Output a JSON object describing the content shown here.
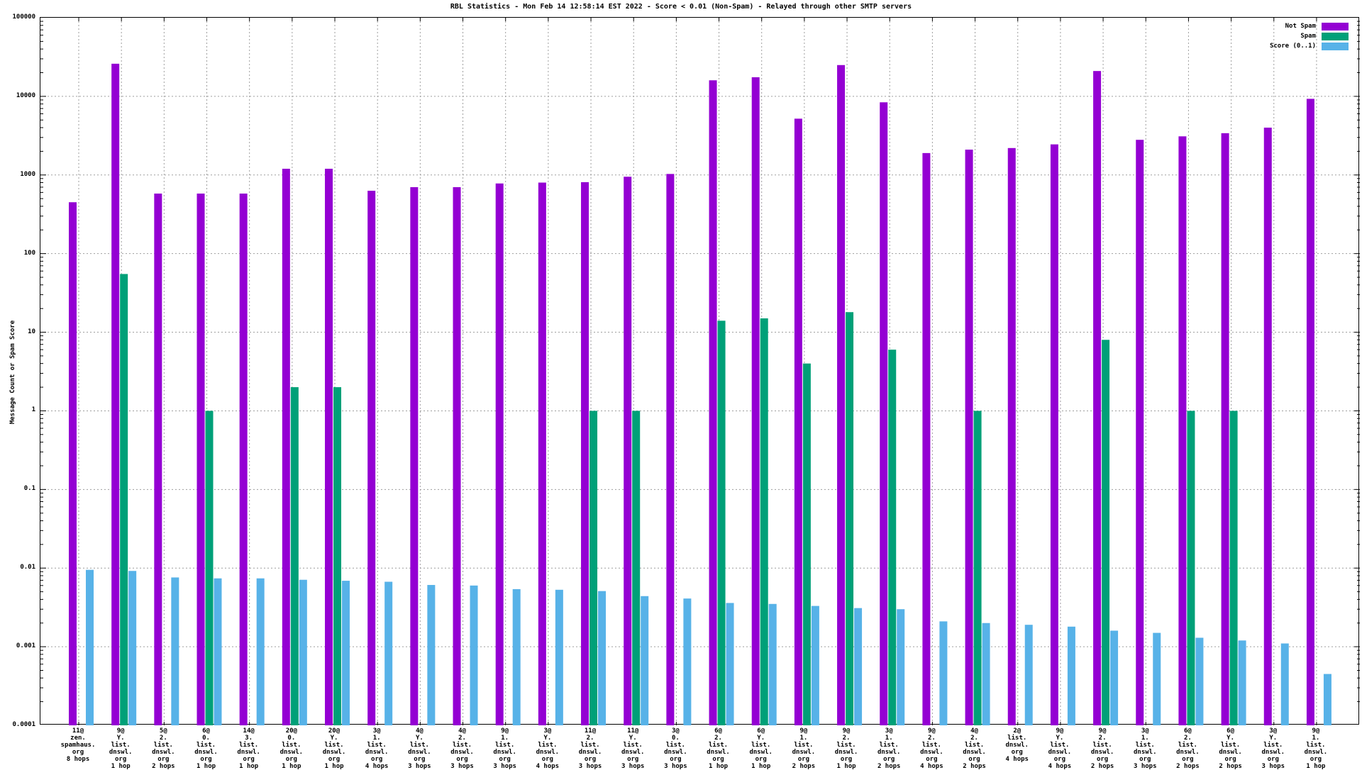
{
  "title": "RBL Statistics - Mon Feb 14 12:58:14 EST 2022 - Score < 0.01 (Non-Spam) - Relayed through other SMTP servers",
  "y_axis": {
    "label": "Message Count or Spam Score",
    "tick_labels": [
      "100000",
      "10000",
      "1000",
      "100",
      "10",
      "1",
      "0.1",
      "0.01",
      "0.001",
      "0.0001"
    ]
  },
  "colors": {
    "not_spam": "#9400d3",
    "spam": "#00a078",
    "score": "#57b2e8",
    "grid": "#9e9e9e",
    "border": "#000000"
  },
  "chart_data": {
    "type": "bar",
    "scale": "log",
    "ylim": [
      0.0001,
      100000
    ],
    "grid": true,
    "legend_position": "top-right",
    "title": "RBL Statistics - Mon Feb 14 12:58:14 EST 2022 - Score < 0.01 (Non-Spam) - Relayed through other SMTP servers",
    "xlabel": "",
    "ylabel": "Message Count or Spam Score",
    "categories": [
      {
        "name": "11@ zen.spamhaus.org 8 hops",
        "lines": [
          "11@",
          "zen.",
          "spamhaus.",
          "org",
          "8 hops"
        ]
      },
      {
        "name": "9@ Y.list.dnswl.org 1 hop",
        "lines": [
          "9@",
          "Y.",
          "list.",
          "dnswl.",
          "org",
          "1 hop"
        ]
      },
      {
        "name": "5@ 2.list.dnswl.org 2 hops",
        "lines": [
          "5@",
          "2.",
          "list.",
          "dnswl.",
          "org",
          "2 hops"
        ]
      },
      {
        "name": "6@ 0.list.dnswl.org 1 hop",
        "lines": [
          "6@",
          "0.",
          "list.",
          "dnswl.",
          "org",
          "1 hop"
        ]
      },
      {
        "name": "14@ 3.list.dnswl.org 1 hop",
        "lines": [
          "14@",
          "3.",
          "list.",
          "dnswl.",
          "org",
          "1 hop"
        ]
      },
      {
        "name": "20@ 0.list.dnswl.org 1 hop",
        "lines": [
          "20@",
          "0.",
          "list.",
          "dnswl.",
          "org",
          "1 hop"
        ]
      },
      {
        "name": "20@ Y.list.dnswl.org 1 hop",
        "lines": [
          "20@",
          "Y.",
          "list.",
          "dnswl.",
          "org",
          "1 hop"
        ]
      },
      {
        "name": "3@ 1.list.dnswl.org 4 hops",
        "lines": [
          "3@",
          "1.",
          "list.",
          "dnswl.",
          "org",
          "4 hops"
        ]
      },
      {
        "name": "4@ Y.list.dnswl.org 3 hops",
        "lines": [
          "4@",
          "Y.",
          "list.",
          "dnswl.",
          "org",
          "3 hops"
        ]
      },
      {
        "name": "4@ 2.list.dnswl.org 3 hops",
        "lines": [
          "4@",
          "2.",
          "list.",
          "dnswl.",
          "org",
          "3 hops"
        ]
      },
      {
        "name": "9@ 1.list.dnswl.org 3 hops",
        "lines": [
          "9@",
          "1.",
          "list.",
          "dnswl.",
          "org",
          "3 hops"
        ]
      },
      {
        "name": "3@ Y.list.dnswl.org 4 hops",
        "lines": [
          "3@",
          "Y.",
          "list.",
          "dnswl.",
          "org",
          "4 hops"
        ]
      },
      {
        "name": "11@ 2.list.dnswl.org 3 hops",
        "lines": [
          "11@",
          "2.",
          "list.",
          "dnswl.",
          "org",
          "3 hops"
        ]
      },
      {
        "name": "11@ Y.list.dnswl.org 3 hops",
        "lines": [
          "11@",
          "Y.",
          "list.",
          "dnswl.",
          "org",
          "3 hops"
        ]
      },
      {
        "name": "3@ 0.list.dnswl.org 3 hops",
        "lines": [
          "3@",
          "0.",
          "list.",
          "dnswl.",
          "org",
          "3 hops"
        ]
      },
      {
        "name": "6@ 2.list.dnswl.org 1 hop",
        "lines": [
          "6@",
          "2.",
          "list.",
          "dnswl.",
          "org",
          "1 hop"
        ]
      },
      {
        "name": "6@ Y.list.dnswl.org 1 hop",
        "lines": [
          "6@",
          "Y.",
          "list.",
          "dnswl.",
          "org",
          "1 hop"
        ]
      },
      {
        "name": "9@ 1.list.dnswl.org 2 hops",
        "lines": [
          "9@",
          "1.",
          "list.",
          "dnswl.",
          "org",
          "2 hops"
        ]
      },
      {
        "name": "9@ 2.list.dnswl.org 1 hop",
        "lines": [
          "9@",
          "2.",
          "list.",
          "dnswl.",
          "org",
          "1 hop"
        ]
      },
      {
        "name": "3@ 1.list.dnswl.org 2 hops",
        "lines": [
          "3@",
          "1.",
          "list.",
          "dnswl.",
          "org",
          "2 hops"
        ]
      },
      {
        "name": "9@ 2.list.dnswl.org 4 hops",
        "lines": [
          "9@",
          "2.",
          "list.",
          "dnswl.",
          "org",
          "4 hops"
        ]
      },
      {
        "name": "4@ 2.list.dnswl.org 2 hops",
        "lines": [
          "4@",
          "2.",
          "list.",
          "dnswl.",
          "org",
          "2 hops"
        ]
      },
      {
        "name": "2@ list.dnswl.org 4 hops",
        "lines": [
          "2@",
          "list.",
          "dnswl.",
          "org",
          "4 hops"
        ]
      },
      {
        "name": "9@ Y.list.dnswl.org 4 hops",
        "lines": [
          "9@",
          "Y.",
          "list.",
          "dnswl.",
          "org",
          "4 hops"
        ]
      },
      {
        "name": "9@ 2.list.dnswl.org 2 hops",
        "lines": [
          "9@",
          "2.",
          "list.",
          "dnswl.",
          "org",
          "2 hops"
        ]
      },
      {
        "name": "3@ 1.list.dnswl.org 3 hops",
        "lines": [
          "3@",
          "1.",
          "list.",
          "dnswl.",
          "org",
          "3 hops"
        ]
      },
      {
        "name": "6@ 2.list.dnswl.org 2 hops",
        "lines": [
          "6@",
          "2.",
          "list.",
          "dnswl.",
          "org",
          "2 hops"
        ]
      },
      {
        "name": "6@ Y.list.dnswl.org 2 hops",
        "lines": [
          "6@",
          "Y.",
          "list.",
          "dnswl.",
          "org",
          "2 hops"
        ]
      },
      {
        "name": "3@ Y.list.dnswl.org 3 hops",
        "lines": [
          "3@",
          "Y.",
          "list.",
          "dnswl.",
          "org",
          "3 hops"
        ]
      },
      {
        "name": "9@ 1.list.dnswl.org 1 hop",
        "lines": [
          "9@",
          "1.",
          "list.",
          "dnswl.",
          "org",
          "1 hop"
        ]
      }
    ],
    "series": [
      {
        "name": "Not Spam",
        "color": "#9400d3",
        "values": [
          450,
          26000,
          580,
          580,
          580,
          1200,
          1200,
          630,
          700,
          700,
          780,
          800,
          810,
          950,
          1030,
          16000,
          17500,
          5200,
          25000,
          8400,
          1900,
          2100,
          2200,
          2450,
          21000,
          2800,
          3100,
          3400,
          4000,
          9300
        ]
      },
      {
        "name": "Spam",
        "color": "#00a078",
        "values": [
          null,
          55,
          null,
          1,
          null,
          2,
          2,
          null,
          null,
          null,
          null,
          null,
          1,
          1,
          null,
          14,
          15,
          4,
          18,
          6,
          null,
          1,
          null,
          null,
          8,
          null,
          1,
          1,
          null,
          null
        ]
      },
      {
        "name": "Score (0..1)",
        "color": "#57b2e8",
        "values": [
          0.0095,
          0.0092,
          0.0076,
          0.0074,
          0.0074,
          0.0071,
          0.0069,
          0.0067,
          0.0061,
          0.006,
          0.0054,
          0.0053,
          0.0051,
          0.0044,
          0.0041,
          0.0036,
          0.0035,
          0.0033,
          0.0031,
          0.003,
          0.0021,
          0.002,
          0.0019,
          0.0018,
          0.0016,
          0.0015,
          0.0013,
          0.0012,
          0.0011,
          0.00045
        ]
      }
    ]
  }
}
